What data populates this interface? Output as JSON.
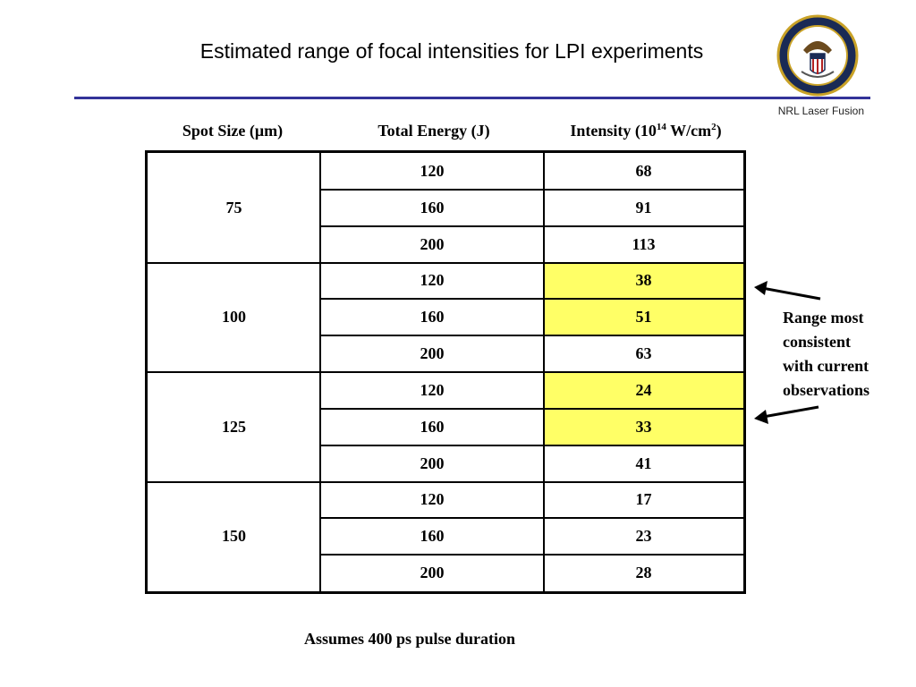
{
  "page": {
    "title": "Estimated range of focal intensities for LPI experiments",
    "brand": "NRL Laser Fusion",
    "seal_icon": "naval-research-laboratory-seal-icon"
  },
  "table": {
    "headers": {
      "spot_size": "Spot Size (μm)",
      "total_energy": "Total Energy (J)",
      "intensity_prefix": "Intensity (10",
      "intensity_exp": "14",
      "intensity_mid": " W/cm",
      "intensity_exp2": "2",
      "intensity_suffix": ")"
    },
    "groups": [
      {
        "spot": "75",
        "rows": [
          {
            "energy": "120",
            "intensity": "68",
            "highlight": false
          },
          {
            "energy": "160",
            "intensity": "91",
            "highlight": false
          },
          {
            "energy": "200",
            "intensity": "113",
            "highlight": false
          }
        ]
      },
      {
        "spot": "100",
        "rows": [
          {
            "energy": "120",
            "intensity": "38",
            "highlight": true
          },
          {
            "energy": "160",
            "intensity": "51",
            "highlight": true
          },
          {
            "energy": "200",
            "intensity": "63",
            "highlight": false
          }
        ]
      },
      {
        "spot": "125",
        "rows": [
          {
            "energy": "120",
            "intensity": "24",
            "highlight": true
          },
          {
            "energy": "160",
            "intensity": "33",
            "highlight": true
          },
          {
            "energy": "200",
            "intensity": "41",
            "highlight": false
          }
        ]
      },
      {
        "spot": "150",
        "rows": [
          {
            "energy": "120",
            "intensity": "17",
            "highlight": false
          },
          {
            "energy": "160",
            "intensity": "23",
            "highlight": false
          },
          {
            "energy": "200",
            "intensity": "28",
            "highlight": false
          }
        ]
      }
    ],
    "highlight_color": "#ffff66"
  },
  "annotation": {
    "text_lines": [
      "Range most",
      "consistent",
      "with current",
      "observations"
    ]
  },
  "footer": "Assumes 400 ps pulse duration",
  "colors": {
    "rule": "#333399",
    "highlight": "#ffff66"
  }
}
